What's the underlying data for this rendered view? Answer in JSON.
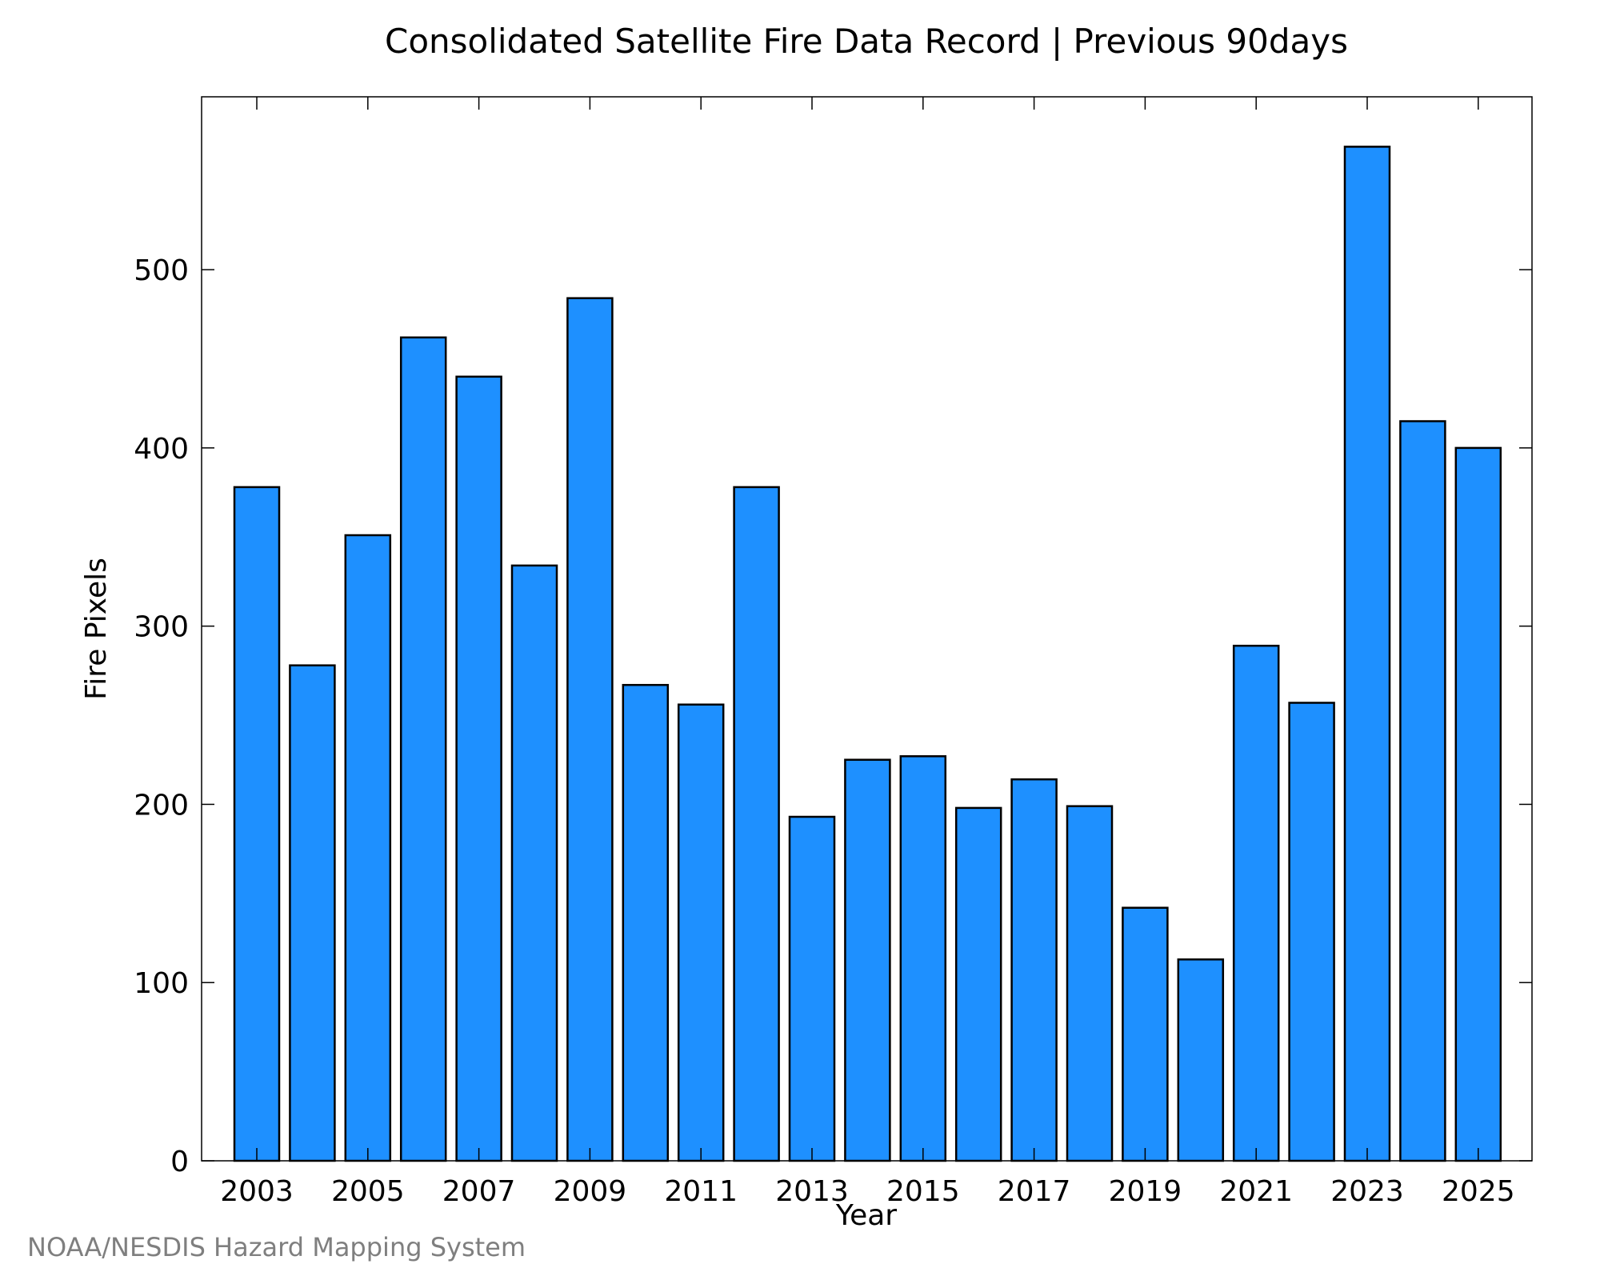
{
  "chart_data": {
    "type": "bar",
    "title": "Consolidated Satellite Fire Data Record | Previous 90days",
    "xlabel": "Year",
    "ylabel": "Fire Pixels",
    "categories": [
      "2003",
      "2004",
      "2005",
      "2006",
      "2007",
      "2008",
      "2009",
      "2010",
      "2011",
      "2012",
      "2013",
      "2014",
      "2015",
      "2016",
      "2017",
      "2018",
      "2019",
      "2020",
      "2021",
      "2022",
      "2023",
      "2024",
      "2025"
    ],
    "values": [
      378,
      278,
      351,
      462,
      440,
      334,
      484,
      267,
      256,
      378,
      193,
      225,
      227,
      198,
      214,
      199,
      142,
      113,
      289,
      257,
      569,
      415,
      400
    ],
    "x_tick_labels": [
      "2003",
      "2005",
      "2007",
      "2009",
      "2011",
      "2013",
      "2015",
      "2017",
      "2019",
      "2021",
      "2023",
      "2025"
    ],
    "y_ticks": [
      0,
      100,
      200,
      300,
      400,
      500
    ],
    "ylim": [
      0,
      597
    ],
    "grid": false,
    "bar_color": "#1e90ff",
    "edge_color": "#000000"
  },
  "credit": "NOAA/NESDIS Hazard Mapping System"
}
